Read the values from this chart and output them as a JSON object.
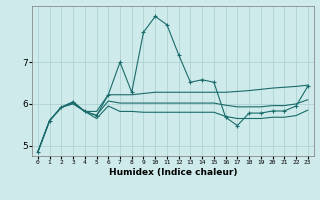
{
  "xlabel": "Humidex (Indice chaleur)",
  "background_color": "#ceeaea",
  "grid_color": "#aacece",
  "line_color": "#1a6b6b",
  "xlim": [
    -0.5,
    23.5
  ],
  "ylim": [
    4.75,
    8.35
  ],
  "x_ticks": [
    0,
    1,
    2,
    3,
    4,
    5,
    6,
    7,
    8,
    9,
    10,
    11,
    12,
    13,
    14,
    15,
    16,
    17,
    18,
    19,
    20,
    21,
    22,
    23
  ],
  "y_ticks": [
    5,
    6,
    7
  ],
  "series_main": [
    4.85,
    5.6,
    5.92,
    6.05,
    5.82,
    5.72,
    6.22,
    7.0,
    6.28,
    7.72,
    8.1,
    7.9,
    7.18,
    6.52,
    6.58,
    6.52,
    5.68,
    5.48,
    5.78,
    5.78,
    5.83,
    5.83,
    5.95,
    6.42
  ],
  "series_upper": [
    4.85,
    5.6,
    5.92,
    6.05,
    5.82,
    5.82,
    6.22,
    6.22,
    6.22,
    6.25,
    6.28,
    6.28,
    6.28,
    6.28,
    6.28,
    6.28,
    6.28,
    6.3,
    6.32,
    6.35,
    6.38,
    6.4,
    6.42,
    6.45
  ],
  "series_lower": [
    4.85,
    5.6,
    5.92,
    6.0,
    5.82,
    5.65,
    5.95,
    5.82,
    5.82,
    5.8,
    5.8,
    5.8,
    5.8,
    5.8,
    5.8,
    5.8,
    5.7,
    5.65,
    5.65,
    5.65,
    5.68,
    5.68,
    5.72,
    5.85
  ],
  "series_mid": [
    4.85,
    5.6,
    5.92,
    6.02,
    5.82,
    5.73,
    6.07,
    6.02,
    6.02,
    6.02,
    6.02,
    6.02,
    6.02,
    6.02,
    6.02,
    6.02,
    5.97,
    5.93,
    5.93,
    5.93,
    5.96,
    5.96,
    6.0,
    6.1
  ]
}
